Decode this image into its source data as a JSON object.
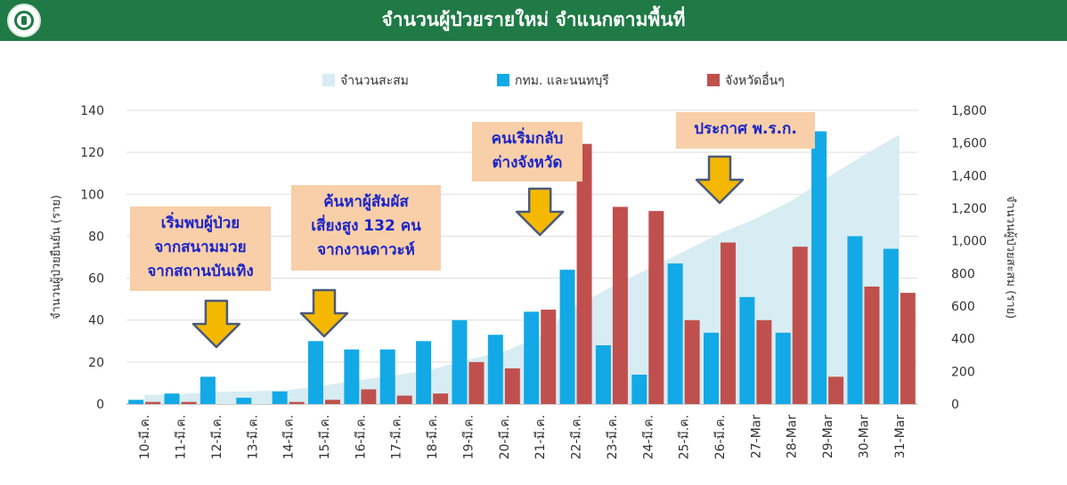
{
  "header": {
    "title": "จำนวนผู้ป่วยรายใหม่ จำแนกตามพื้นที่",
    "logo_icon": "ministry-seal-icon",
    "background": "#1f7a45"
  },
  "callouts": [
    {
      "text": "เริ่มพบผู้ป่วย\nจากสนามมวย\nจากสถานบันเทิง",
      "category": "12-มี.ค."
    },
    {
      "text": "ค้นหาผู้สัมผัส\nเสี่ยงสูง 132 คน\nจากงานดาวะห์",
      "category": "15-มี.ค."
    },
    {
      "text": "คนเริ่มกลับ\nต่างจังหวัด",
      "category": "21-มี.ค."
    },
    {
      "text": "ประกาศ พ.ร.ก.",
      "category": "26-มี.ค."
    }
  ],
  "chart_data": {
    "type": "bar",
    "categories": [
      "10-มี.ค.",
      "11-มี.ค.",
      "12-มี.ค.",
      "13-มี.ค.",
      "14-มี.ค.",
      "15-มี.ค.",
      "16-มี.ค.",
      "17-มี.ค.",
      "18-มี.ค.",
      "19-มี.ค.",
      "20-มี.ค.",
      "21-มี.ค.",
      "22-มี.ค.",
      "23-มี.ค.",
      "24-มี.ค.",
      "25-มี.ค.",
      "26-มี.ค.",
      "27-Mar",
      "28-Mar",
      "29-Mar",
      "30-Mar",
      "31-Mar"
    ],
    "series": [
      {
        "name": "จำนวนสะสม",
        "kind": "area",
        "axis": "right",
        "color": "#d8ecf3",
        "values": [
          56,
          61,
          75,
          78,
          85,
          114,
          147,
          177,
          212,
          272,
          322,
          411,
          599,
          721,
          827,
          934,
          1045,
          1136,
          1245,
          1388,
          1524,
          1651
        ]
      },
      {
        "name": "กทม. และนนทบุรี",
        "kind": "bar",
        "axis": "left",
        "color": "#12a9e6",
        "values": [
          2,
          5,
          13,
          3,
          6,
          30,
          26,
          26,
          30,
          40,
          33,
          44,
          64,
          28,
          14,
          67,
          34,
          51,
          34,
          130,
          80,
          74
        ]
      },
      {
        "name": "จังหวัดอื่นๆ",
        "kind": "bar",
        "axis": "left",
        "color": "#c0504d",
        "values": [
          1,
          1,
          0,
          0,
          1,
          2,
          7,
          4,
          5,
          20,
          17,
          45,
          124,
          94,
          92,
          40,
          77,
          40,
          75,
          13,
          56,
          53
        ]
      }
    ],
    "ylabel": "จำนวนผู้ป่วยยืนยัน  (ราย)",
    "y2label": "จำนวนผู้ป่วยสะสม  (ราย)",
    "ylim": [
      0,
      140
    ],
    "yticks": [
      0,
      20,
      40,
      60,
      80,
      100,
      120,
      140
    ],
    "y2lim": [
      0,
      1800
    ],
    "y2ticks": [
      0,
      200,
      400,
      600,
      800,
      1000,
      1200,
      1400,
      1600,
      1800
    ],
    "y2tick_labels": [
      "0",
      "200",
      "400",
      "600",
      "800",
      "1,000",
      "1,200",
      "1,400",
      "1,600",
      "1,800"
    ],
    "grid": true,
    "legend": "top"
  }
}
